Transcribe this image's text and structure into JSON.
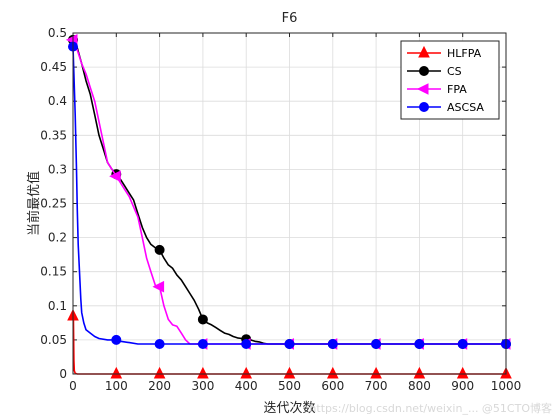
{
  "chart_data": {
    "type": "line",
    "title": "F6",
    "xlabel": "迭代次数",
    "ylabel": "当前最优值",
    "xlim": [
      0,
      1000
    ],
    "ylim": [
      0,
      0.5
    ],
    "xticks": [
      "0",
      "100",
      "200",
      "300",
      "400",
      "500",
      "600",
      "700",
      "800",
      "900",
      "1000"
    ],
    "yticks": [
      "0",
      "0.05",
      "0.1",
      "0.15",
      "0.2",
      "0.25",
      "0.3",
      "0.35",
      "0.4",
      "0.45",
      "0.5"
    ],
    "grid": true,
    "legend_position": "top-right",
    "series": [
      {
        "name": "HLFPA",
        "color": "#ff0000",
        "marker": "triangle-up",
        "x": [
          0,
          1,
          2,
          3,
          5,
          10,
          100,
          200,
          300,
          400,
          500,
          600,
          700,
          800,
          900,
          1000
        ],
        "y": [
          0.085,
          0.085,
          0.02,
          0.005,
          0.001,
          0.0,
          0.0,
          0.0,
          0.0,
          0.0,
          0.0,
          0.0,
          0.0,
          0.0,
          0.0,
          0.0
        ],
        "marker_x": [
          0,
          100,
          200,
          300,
          400,
          500,
          600,
          700,
          800,
          900,
          1000
        ]
      },
      {
        "name": "CS",
        "color": "#000000",
        "marker": "circle",
        "x": [
          0,
          10,
          20,
          30,
          40,
          50,
          60,
          70,
          80,
          90,
          100,
          110,
          120,
          130,
          140,
          150,
          160,
          170,
          180,
          190,
          200,
          210,
          220,
          230,
          240,
          250,
          260,
          270,
          280,
          290,
          300,
          310,
          320,
          330,
          340,
          350,
          360,
          370,
          380,
          390,
          400,
          410,
          420,
          430,
          440,
          450,
          500,
          600,
          700,
          800,
          900,
          1000
        ],
        "y": [
          0.49,
          0.478,
          0.455,
          0.43,
          0.41,
          0.38,
          0.35,
          0.33,
          0.31,
          0.3,
          0.293,
          0.285,
          0.275,
          0.265,
          0.255,
          0.235,
          0.215,
          0.2,
          0.19,
          0.185,
          0.182,
          0.17,
          0.16,
          0.155,
          0.145,
          0.138,
          0.128,
          0.118,
          0.108,
          0.095,
          0.08,
          0.075,
          0.072,
          0.068,
          0.064,
          0.06,
          0.058,
          0.055,
          0.053,
          0.052,
          0.051,
          0.05,
          0.048,
          0.047,
          0.045,
          0.044,
          0.044,
          0.044,
          0.044,
          0.044,
          0.044,
          0.044
        ],
        "marker_x": [
          0,
          100,
          200,
          300,
          400,
          500,
          600,
          700,
          800,
          900,
          1000
        ]
      },
      {
        "name": "FPA",
        "color": "#ff00ff",
        "marker": "triangle-left",
        "x": [
          0,
          10,
          20,
          30,
          40,
          50,
          60,
          70,
          80,
          90,
          100,
          110,
          120,
          130,
          140,
          150,
          160,
          170,
          180,
          190,
          200,
          210,
          220,
          230,
          240,
          250,
          260,
          270,
          280,
          290,
          300,
          500,
          600,
          700,
          800,
          900,
          1000
        ],
        "y": [
          0.49,
          0.475,
          0.455,
          0.44,
          0.42,
          0.4,
          0.37,
          0.34,
          0.31,
          0.3,
          0.29,
          0.28,
          0.27,
          0.26,
          0.245,
          0.23,
          0.2,
          0.17,
          0.15,
          0.13,
          0.128,
          0.1,
          0.08,
          0.072,
          0.07,
          0.06,
          0.05,
          0.044,
          0.044,
          0.044,
          0.044,
          0.044,
          0.044,
          0.044,
          0.044,
          0.044,
          0.044
        ],
        "marker_x": [
          0,
          100,
          200,
          300,
          400,
          500,
          600,
          700,
          800,
          900,
          1000
        ]
      },
      {
        "name": "ASCSA",
        "color": "#0000ff",
        "marker": "circle",
        "x": [
          0,
          2,
          5,
          8,
          10,
          12,
          15,
          18,
          20,
          25,
          30,
          40,
          50,
          60,
          80,
          100,
          110,
          130,
          150,
          200,
          300,
          400,
          500,
          600,
          700,
          800,
          900,
          1000
        ],
        "y": [
          0.48,
          0.44,
          0.38,
          0.3,
          0.24,
          0.19,
          0.15,
          0.11,
          0.09,
          0.075,
          0.065,
          0.06,
          0.055,
          0.052,
          0.05,
          0.05,
          0.048,
          0.046,
          0.044,
          0.044,
          0.044,
          0.044,
          0.044,
          0.044,
          0.044,
          0.044,
          0.044,
          0.044
        ],
        "marker_x": [
          0,
          100,
          200,
          300,
          400,
          500,
          600,
          700,
          800,
          900,
          1000
        ]
      }
    ]
  },
  "watermark": "https://blog.csdn.net/weixin_... @51CTO博客"
}
